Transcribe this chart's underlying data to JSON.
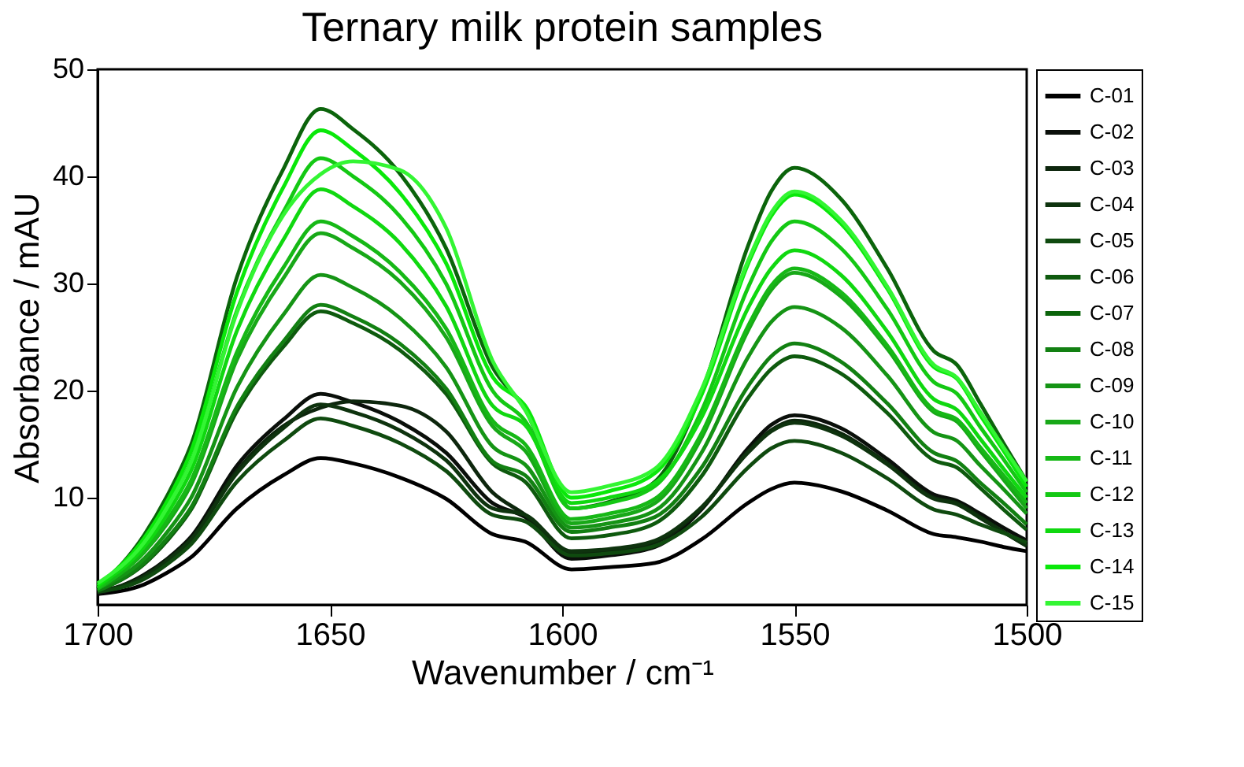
{
  "chart_data": {
    "type": "line",
    "title": "Ternary milk protein samples",
    "xlabel": "Wavenumber / cm⁻¹",
    "ylabel": "Absorbance / mAU",
    "x": [
      1700,
      1690,
      1685,
      1680,
      1670,
      1660,
      1652,
      1645,
      1635,
      1625,
      1615,
      1608,
      1598,
      1590,
      1580,
      1570,
      1560,
      1555,
      1550,
      1540,
      1530,
      1520,
      1515,
      1510,
      1505,
      1500
    ],
    "xlim": [
      1700,
      1500
    ],
    "xticks": [
      1700,
      1650,
      1600,
      1550,
      1500
    ],
    "ylim": [
      0,
      50
    ],
    "yticks": [
      10,
      20,
      30,
      40,
      50
    ],
    "grid": false,
    "legend": "right",
    "marker": "none",
    "line_style": "solid",
    "series": [
      {
        "name": "C-01",
        "color": "#000000",
        "values": [
          1.0,
          1.9,
          3.0,
          4.4,
          9.0,
          12.1,
          13.7,
          13.2,
          11.9,
          9.9,
          6.6,
          5.9,
          3.3,
          3.5,
          3.9,
          6.1,
          9.5,
          10.8,
          11.4,
          10.6,
          8.8,
          6.6,
          6.3,
          5.9,
          5.4,
          5.0
        ]
      },
      {
        "name": "C-02",
        "color": "#0a0f0a",
        "values": [
          1.0,
          2.8,
          4.3,
          6.3,
          13.0,
          17.3,
          19.7,
          18.9,
          17.1,
          14.2,
          9.5,
          8.2,
          4.3,
          4.6,
          5.4,
          8.9,
          14.6,
          16.8,
          17.7,
          16.5,
          13.6,
          10.3,
          9.7,
          8.5,
          7.2,
          6.0
        ]
      },
      {
        "name": "C-03",
        "color": "#0d260d",
        "values": [
          1.2,
          2.7,
          4.2,
          6.1,
          12.5,
          16.7,
          18.4,
          19.0,
          18.6,
          16.2,
          10.5,
          8.4,
          4.8,
          5.0,
          5.8,
          9.0,
          14.3,
          16.3,
          17.2,
          16.0,
          13.2,
          10.0,
          9.5,
          8.2,
          6.8,
          5.5
        ]
      },
      {
        "name": "C-04",
        "color": "#0e330e",
        "values": [
          1.2,
          2.6,
          4.1,
          6.0,
          12.3,
          16.5,
          18.7,
          18.0,
          16.3,
          13.5,
          9.0,
          8.4,
          5.0,
          5.2,
          6.0,
          9.1,
          14.2,
          16.2,
          17.0,
          15.8,
          13.1,
          9.9,
          9.4,
          8.1,
          6.8,
          5.5
        ]
      },
      {
        "name": "C-05",
        "color": "#0f4a0f",
        "values": [
          1.2,
          2.4,
          3.8,
          5.6,
          11.5,
          15.3,
          17.4,
          16.7,
          15.1,
          12.5,
          8.4,
          7.8,
          4.6,
          4.8,
          5.5,
          8.2,
          12.8,
          14.6,
          15.3,
          14.2,
          11.8,
          8.9,
          8.4,
          7.5,
          6.7,
          5.8
        ]
      },
      {
        "name": "C-06",
        "color": "#0e5a0e",
        "values": [
          1.3,
          3.8,
          6.0,
          8.8,
          18.1,
          24.1,
          27.4,
          26.3,
          23.8,
          19.7,
          13.2,
          11.5,
          6.2,
          6.5,
          7.6,
          12.0,
          19.3,
          22.0,
          23.2,
          21.6,
          17.9,
          13.5,
          12.8,
          10.9,
          8.9,
          7.0
        ]
      },
      {
        "name": "C-07",
        "color": "#0b640b",
        "values": [
          1.5,
          6.5,
          10.2,
          14.8,
          30.6,
          40.7,
          46.3,
          44.4,
          40.3,
          33.3,
          22.2,
          18.3,
          9.0,
          9.6,
          11.5,
          19.8,
          33.5,
          38.6,
          40.8,
          37.9,
          31.4,
          23.7,
          22.4,
          18.8,
          15.1,
          11.5
        ]
      },
      {
        "name": "C-08",
        "color": "#128012",
        "values": [
          1.3,
          3.9,
          6.2,
          9.0,
          18.5,
          24.6,
          28.0,
          26.9,
          24.4,
          20.2,
          13.4,
          12.1,
          6.8,
          7.2,
          8.2,
          12.8,
          20.4,
          23.2,
          24.4,
          22.7,
          18.8,
          14.2,
          13.4,
          11.4,
          9.5,
          7.5
        ]
      },
      {
        "name": "C-09",
        "color": "#159415",
        "values": [
          1.5,
          4.3,
          6.8,
          9.9,
          20.3,
          27.1,
          30.8,
          29.6,
          26.8,
          22.2,
          14.8,
          13.1,
          7.2,
          7.6,
          8.8,
          14.2,
          23.1,
          26.4,
          27.8,
          25.9,
          21.4,
          16.1,
          15.3,
          13.0,
          10.8,
          8.5
        ]
      },
      {
        "name": "C-10",
        "color": "#18a818",
        "values": [
          1.5,
          4.9,
          7.6,
          11.1,
          22.9,
          30.5,
          34.7,
          33.3,
          30.2,
          25.0,
          16.7,
          14.4,
          7.6,
          8.1,
          9.5,
          15.6,
          25.6,
          29.4,
          31.0,
          28.8,
          23.9,
          18.0,
          17.1,
          14.4,
          11.7,
          9.0
        ]
      },
      {
        "name": "C-11",
        "color": "#16b816",
        "values": [
          1.5,
          5.0,
          7.9,
          11.5,
          23.6,
          31.5,
          35.8,
          34.4,
          31.1,
          25.8,
          17.2,
          15.0,
          8.0,
          8.5,
          9.9,
          16.0,
          26.0,
          29.8,
          31.4,
          29.2,
          24.2,
          18.2,
          17.3,
          14.7,
          12.1,
          9.5
        ]
      },
      {
        "name": "C-12",
        "color": "#14c814",
        "values": [
          1.6,
          5.8,
          9.2,
          13.3,
          27.5,
          36.7,
          41.7,
          40.0,
          36.3,
          30.0,
          20.0,
          17.2,
          9.0,
          9.5,
          11.1,
          18.1,
          29.6,
          33.9,
          35.8,
          33.3,
          27.6,
          20.8,
          19.7,
          16.6,
          13.6,
          10.5
        ]
      },
      {
        "name": "C-13",
        "color": "#10d810",
        "values": [
          1.8,
          5.4,
          8.5,
          12.4,
          25.6,
          34.1,
          38.8,
          37.2,
          33.8,
          27.9,
          18.6,
          16.8,
          9.5,
          10.0,
          11.4,
          17.5,
          27.7,
          31.4,
          33.1,
          30.8,
          25.5,
          19.2,
          18.2,
          15.5,
          12.7,
          10.0
        ]
      },
      {
        "name": "C-14",
        "color": "#0ae80a",
        "values": [
          1.8,
          6.2,
          9.7,
          14.2,
          29.2,
          39.0,
          44.3,
          42.5,
          38.5,
          31.9,
          21.3,
          18.6,
          10.0,
          10.6,
          12.3,
          19.6,
          31.8,
          36.3,
          38.3,
          35.6,
          29.5,
          22.2,
          21.1,
          17.7,
          14.4,
          11.0
        ]
      },
      {
        "name": "C-15",
        "color": "#33f533",
        "values": [
          2.0,
          5.8,
          9.1,
          13.2,
          27.3,
          36.4,
          40.2,
          41.4,
          40.6,
          35.2,
          22.8,
          18.2,
          10.5,
          11.1,
          12.7,
          20.1,
          32.1,
          36.6,
          38.6,
          35.9,
          29.7,
          22.4,
          21.2,
          18.0,
          14.7,
          11.5
        ]
      }
    ]
  }
}
